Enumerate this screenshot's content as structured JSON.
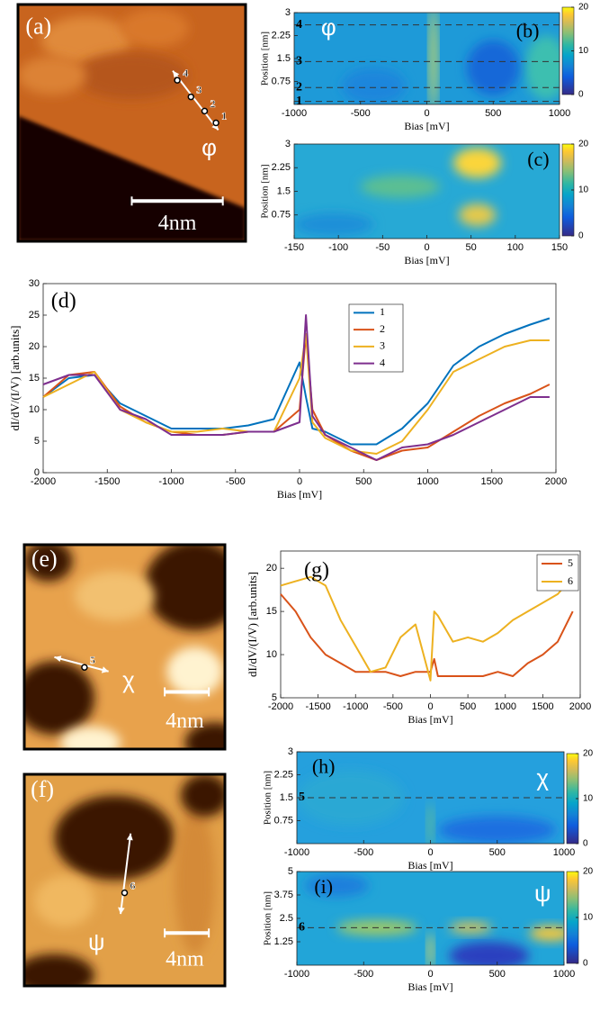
{
  "chart_data": [
    {
      "type": "image",
      "label": "(a)",
      "scale_bar": "4nm",
      "symbol": "φ",
      "points": [
        "1",
        "2",
        "3",
        "4"
      ]
    },
    {
      "type": "heatmap",
      "label": "(b)",
      "symbol": "φ",
      "xlabel": "Bias [mV]",
      "ylabel": "Position [nm]",
      "xlim": [
        -1000,
        1000
      ],
      "xticks": [
        -1000,
        -500,
        0,
        500,
        1000
      ],
      "ylim": [
        0,
        3
      ],
      "yticks": [
        0.75,
        1.5,
        2.25,
        3
      ],
      "clim": [
        0,
        20
      ],
      "cticks": [
        0,
        10,
        20
      ],
      "markers": [
        {
          "label": "4",
          "value": 2.6
        },
        {
          "label": "3",
          "value": 1.4
        },
        {
          "label": "2",
          "value": 0.55
        },
        {
          "label": "1",
          "value": 0.1
        }
      ]
    },
    {
      "type": "heatmap",
      "label": "(c)",
      "xlabel": "Bias [mV]",
      "ylabel": "Position [nm]",
      "xlim": [
        -150,
        150
      ],
      "xticks": [
        -150,
        -100,
        -50,
        0,
        50,
        100,
        150
      ],
      "ylim": [
        0,
        3
      ],
      "yticks": [
        0.75,
        1.5,
        2.25,
        3
      ],
      "clim": [
        0,
        20
      ],
      "cticks": [
        0,
        10,
        20
      ]
    },
    {
      "type": "line",
      "label": "(d)",
      "xlabel": "Bias [mV]",
      "ylabel": "dI/dV/(I/V) [arb.units]",
      "xlim": [
        -2000,
        2000
      ],
      "xticks": [
        -2000,
        -1500,
        -1000,
        -500,
        0,
        500,
        1000,
        1500,
        2000
      ],
      "ylim": [
        0,
        30
      ],
      "yticks": [
        0,
        5,
        10,
        15,
        20,
        25,
        30
      ],
      "legend": "top",
      "x": [
        -2000,
        -1800,
        -1600,
        -1400,
        -1200,
        -1000,
        -800,
        -600,
        -400,
        -200,
        0,
        50,
        100,
        200,
        400,
        600,
        800,
        1000,
        1200,
        1400,
        1600,
        1800,
        1950
      ],
      "series": [
        {
          "name": "1",
          "color": "#0072bd",
          "values": [
            12,
            15,
            15.5,
            11,
            9,
            7,
            7,
            7,
            7.5,
            8.5,
            17.5,
            12,
            7,
            6.5,
            4.5,
            4.5,
            7,
            11,
            17,
            20,
            22,
            23.5,
            24.5
          ]
        },
        {
          "name": "2",
          "color": "#d95319",
          "values": [
            12,
            15.5,
            16,
            10.5,
            8,
            6.5,
            6,
            6,
            6.5,
            6.5,
            10,
            22,
            10,
            6,
            3.5,
            2,
            3.5,
            4,
            6.5,
            9,
            11,
            12.5,
            14
          ]
        },
        {
          "name": "3",
          "color": "#edb120",
          "values": [
            12,
            14,
            16,
            10,
            8,
            6.5,
            6.5,
            7,
            6.5,
            6.5,
            15,
            22,
            8,
            5.5,
            3.5,
            3,
            5,
            10,
            16,
            18,
            20,
            21,
            21
          ]
        },
        {
          "name": "4",
          "color": "#7e2f8e",
          "values": [
            14,
            15.5,
            15.5,
            10,
            8.5,
            6,
            6,
            6,
            6.5,
            6.5,
            8,
            25,
            9,
            6,
            4,
            2,
            4,
            4.5,
            6,
            8,
            10,
            12,
            12
          ]
        }
      ]
    },
    {
      "type": "image",
      "label": "(e)",
      "scale_bar": "4nm",
      "symbol": "χ",
      "points": [
        "5"
      ]
    },
    {
      "type": "line",
      "label": "(g)",
      "xlabel": "Bias [mV]",
      "ylabel": "dI/dV/(I/V) [arb.units]",
      "xlim": [
        -2000,
        2000
      ],
      "xticks": [
        -2000,
        -1500,
        -1000,
        -500,
        0,
        500,
        1000,
        1500,
        2000
      ],
      "ylim": [
        5,
        22
      ],
      "yticks": [
        5,
        10,
        15,
        20
      ],
      "legend": "top-right",
      "x": [
        -2000,
        -1800,
        -1600,
        -1400,
        -1200,
        -1000,
        -800,
        -600,
        -400,
        -200,
        0,
        50,
        100,
        300,
        500,
        700,
        900,
        1100,
        1300,
        1500,
        1700,
        1900
      ],
      "series": [
        {
          "name": "5",
          "color": "#d95319",
          "values": [
            17,
            15,
            12,
            10,
            9,
            8,
            8,
            8,
            7.5,
            8,
            8,
            9.5,
            7.5,
            7.5,
            7.5,
            7.5,
            8,
            7.5,
            9,
            10,
            11.5,
            15
          ]
        },
        {
          "name": "6",
          "color": "#edb120",
          "values": [
            18,
            18.5,
            19,
            18,
            14,
            11,
            8,
            8.5,
            12,
            13.5,
            7,
            15,
            14.5,
            11.5,
            12,
            11.5,
            12.5,
            14,
            15,
            16,
            17,
            19
          ]
        }
      ]
    },
    {
      "type": "image",
      "label": "(f)",
      "scale_bar": "4nm",
      "symbol": "ψ",
      "points": [
        "6"
      ]
    },
    {
      "type": "heatmap",
      "label": "(h)",
      "symbol": "χ",
      "xlabel": "Bias [mV]",
      "ylabel": "Position [nm]",
      "xlim": [
        -1000,
        1000
      ],
      "xticks": [
        -1000,
        -500,
        0,
        500,
        1000
      ],
      "ylim": [
        0,
        3
      ],
      "yticks": [
        0.75,
        1.5,
        2.25,
        3
      ],
      "clim": [
        0,
        20
      ],
      "cticks": [
        0,
        10,
        20
      ],
      "markers": [
        {
          "label": "5",
          "value": 1.5
        }
      ]
    },
    {
      "type": "heatmap",
      "label": "(i)",
      "symbol": "ψ",
      "xlabel": "Bias [mV]",
      "ylabel": "Position [nm]",
      "xlim": [
        -1000,
        1000
      ],
      "xticks": [
        -1000,
        -500,
        0,
        500,
        1000
      ],
      "ylim": [
        0,
        5
      ],
      "yticks": [
        1.25,
        2.5,
        3.75,
        5
      ],
      "clim": [
        0,
        20
      ],
      "cticks": [
        0,
        10,
        20
      ],
      "markers": [
        {
          "label": "6",
          "value": 2
        }
      ]
    }
  ]
}
